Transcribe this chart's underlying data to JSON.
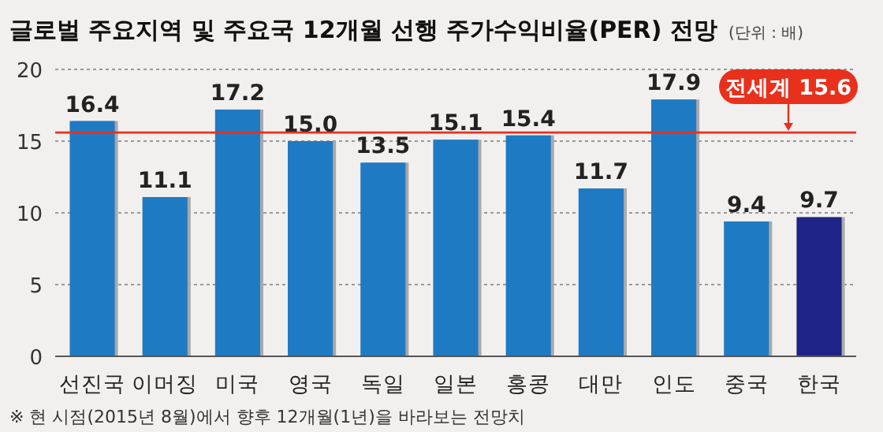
{
  "chart_data": {
    "type": "bar",
    "title": "글로벌 주요지역 및 주요국 12개월 선행 주가수익비율(PER) 전망",
    "subtitle": "(단위 : 배)",
    "categories": [
      "선진국",
      "이머징",
      "미국",
      "영국",
      "독일",
      "일본",
      "홍콩",
      "대만",
      "인도",
      "중국",
      "한국"
    ],
    "values": [
      16.4,
      11.1,
      17.2,
      15.0,
      13.5,
      15.1,
      15.4,
      11.7,
      17.9,
      9.4,
      9.7
    ],
    "colors": [
      "#1f7ac4",
      "#1f7ac4",
      "#1f7ac4",
      "#1f7ac4",
      "#1f7ac4",
      "#1f7ac4",
      "#1f7ac4",
      "#1f7ac4",
      "#1f7ac4",
      "#1f7ac4",
      "#1e2488"
    ],
    "value_labels": [
      "16.4",
      "11.1",
      "17.2",
      "15.0",
      "13.5",
      "15.1",
      "15.4",
      "11.7",
      "17.9",
      "9.4",
      "9.7"
    ],
    "ylim": [
      0,
      20
    ],
    "yticks": [
      0,
      5,
      10,
      15,
      20
    ],
    "grid": "y",
    "ref_lines": [
      {
        "axis": "y",
        "value": 15.6,
        "label": "전세계 15.6",
        "color": "#e8301c"
      }
    ],
    "annotations": [
      "※ 현 시점(2015년 8월)에서 향후 12개월(1년)을 바라보는 전망치"
    ]
  }
}
